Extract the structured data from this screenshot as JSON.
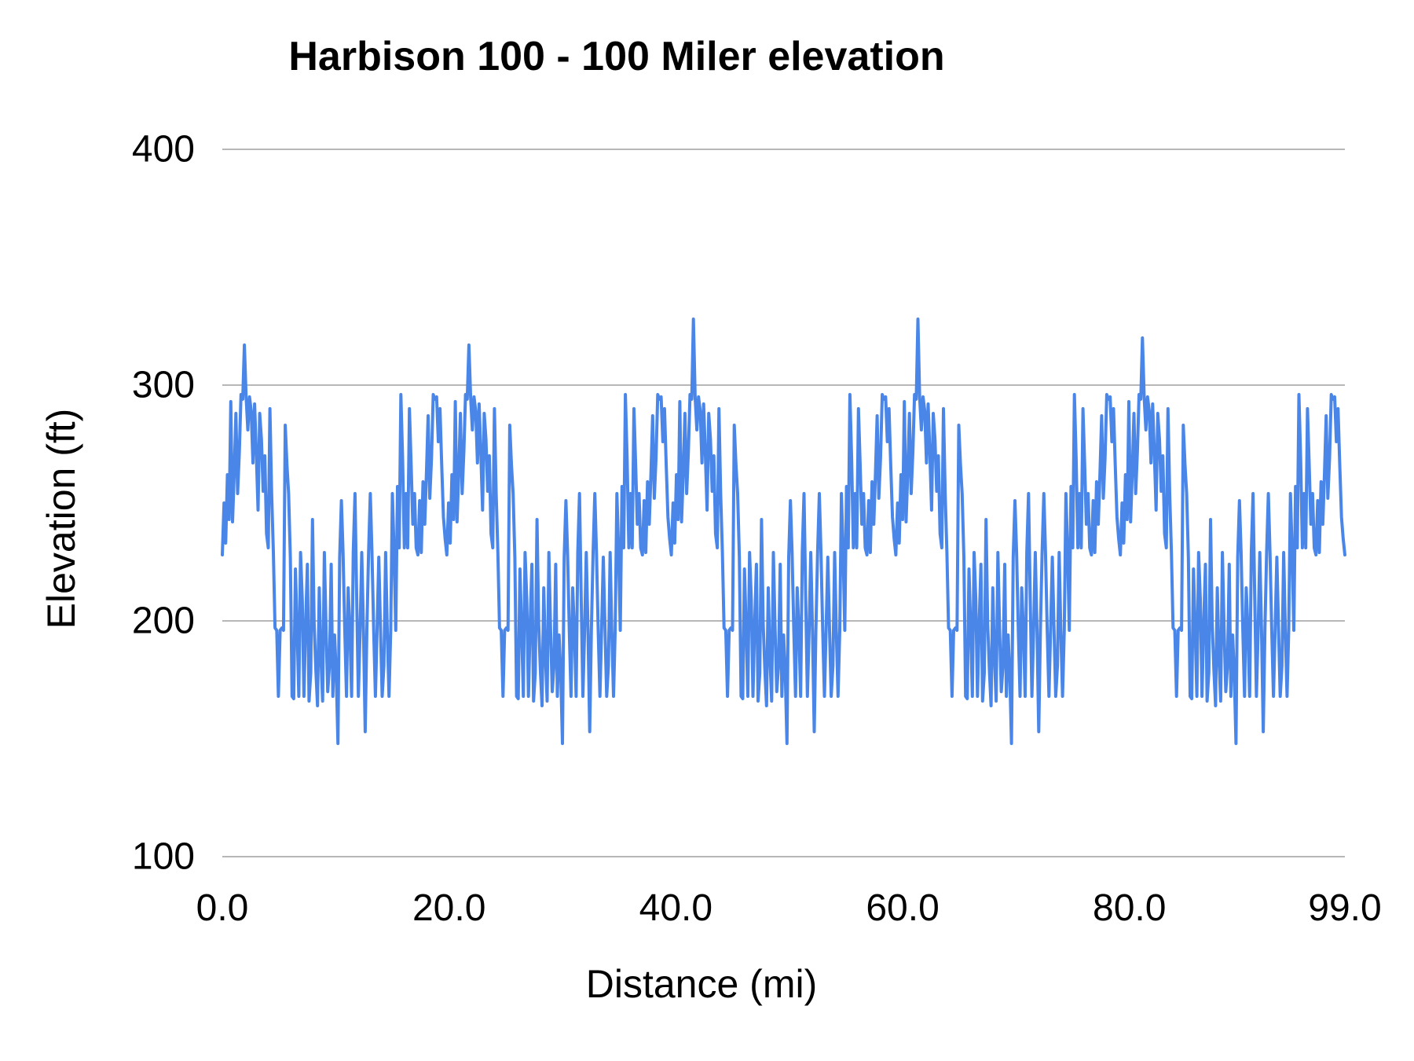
{
  "title": "Harbison 100 - 100 Miler elevation",
  "axes": {
    "x_title": "Distance (mi)",
    "y_title": "Elevation (ft)",
    "x_tick_labels": [
      "0.0",
      "20.0",
      "40.0",
      "60.0",
      "80.0",
      "99.0"
    ],
    "y_tick_labels": [
      "100",
      "200",
      "300",
      "400"
    ]
  },
  "colors": {
    "line": "#4a86e8",
    "grid": "#b7b7b7",
    "text": "#000000",
    "background": "#ffffff"
  },
  "chart_data": {
    "type": "line",
    "title": "Harbison 100 - 100 Miler elevation",
    "xlabel": "Distance (mi)",
    "ylabel": "Elevation (ft)",
    "xlim": [
      0,
      99
    ],
    "ylim": [
      100,
      400
    ],
    "x_tick_values": [
      0,
      20,
      40,
      60,
      80,
      99
    ],
    "y_tick_values": [
      100,
      200,
      300,
      400
    ],
    "grid": "horizontal",
    "legend": "none",
    "series_name": "Elevation (ft)",
    "description": "Five nearly identical ~19.8 mi loops; each loop climbs to a ~295-330 ft spike about 2 mi in, descends into a jagged 150-260 ft valley, then climbs back up near the loop end. Course range about 148-328 ft.",
    "loop": {
      "count": 5,
      "length_mi": 19.8,
      "step_mi": 0.15,
      "spike_index": 13,
      "spike_values_per_loop": [
        317,
        317,
        328,
        328,
        320
      ],
      "elevations": [
        228,
        250,
        233,
        262,
        243,
        293,
        242,
        263,
        288,
        254,
        272,
        296,
        294,
        317,
        295,
        281,
        295,
        289,
        267,
        292,
        271,
        247,
        288,
        277,
        255,
        270,
        237,
        231,
        290,
        254,
        229,
        197,
        196,
        168,
        196,
        197,
        196,
        283,
        266,
        254,
        227,
        168,
        167,
        222,
        196,
        168,
        229,
        209,
        168,
        199,
        224,
        166,
        178,
        243,
        199,
        179,
        164,
        214,
        184,
        166,
        229,
        196,
        170,
        181,
        224,
        168,
        194,
        177,
        148,
        227,
        251,
        229,
        196,
        168,
        214,
        196,
        168,
        229,
        254,
        211,
        168,
        196,
        229,
        196,
        153,
        196,
        229,
        254,
        229,
        196,
        168,
        196,
        227,
        196,
        168,
        181,
        229,
        196,
        168,
        196,
        254,
        229,
        196,
        257,
        231,
        296,
        269,
        231,
        254,
        231,
        290,
        267,
        241,
        254,
        231,
        228,
        251,
        229,
        259,
        241,
        262,
        287,
        252,
        269,
        296,
        294,
        295,
        276,
        290,
        266,
        244,
        235
      ]
    },
    "end_point": {
      "x": 99.0,
      "y": 228
    }
  }
}
